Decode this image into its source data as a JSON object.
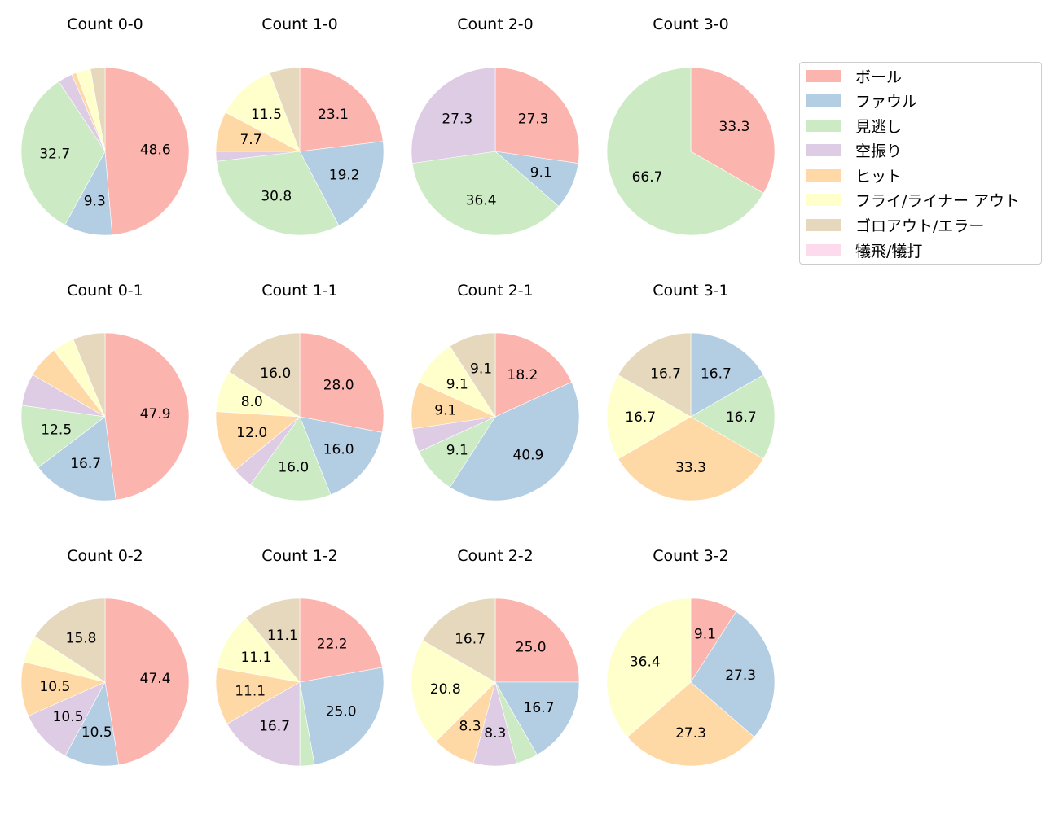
{
  "chart_data": {
    "type": "pie",
    "layout": {
      "rows": 3,
      "cols": 4,
      "legend_position": "upper right outside"
    },
    "categories": [
      "ボール",
      "ファウル",
      "見逃し",
      "空振り",
      "ヒット",
      "フライ/ライナー アウト",
      "ゴロアウト/エラー",
      "犠飛/犠打"
    ],
    "colors": [
      "#fbb4ae",
      "#b3cde3",
      "#ccebc5",
      "#decbe4",
      "#fed9a6",
      "#ffffcc",
      "#e5d8bd",
      "#fddaec"
    ],
    "start_angle": 90,
    "direction": "clockwise",
    "label_threshold": 7,
    "panels": [
      {
        "title": "Count 0-0",
        "values": [
          48.6,
          9.3,
          32.7,
          2.8,
          0.9,
          2.8,
          2.8,
          0
        ]
      },
      {
        "title": "Count 1-0",
        "values": [
          23.1,
          19.2,
          30.8,
          1.9,
          7.7,
          11.5,
          5.8,
          0
        ]
      },
      {
        "title": "Count 2-0",
        "values": [
          27.3,
          9.1,
          36.4,
          27.3,
          0,
          0,
          0,
          0
        ]
      },
      {
        "title": "Count 3-0",
        "values": [
          33.3,
          0,
          66.7,
          0,
          0,
          0,
          0,
          0
        ]
      },
      {
        "title": "Count 0-1",
        "values": [
          47.9,
          16.7,
          12.5,
          6.2,
          6.2,
          4.2,
          6.2,
          0
        ]
      },
      {
        "title": "Count 1-1",
        "values": [
          28.0,
          16.0,
          16.0,
          4.0,
          12.0,
          8.0,
          16.0,
          0
        ]
      },
      {
        "title": "Count 2-1",
        "values": [
          18.2,
          40.9,
          9.1,
          4.5,
          9.1,
          9.1,
          9.1,
          0
        ]
      },
      {
        "title": "Count 3-1",
        "values": [
          0,
          16.7,
          16.7,
          0,
          33.3,
          16.7,
          16.7,
          0
        ]
      },
      {
        "title": "Count 0-2",
        "values": [
          47.4,
          10.5,
          0,
          10.5,
          10.5,
          5.3,
          15.8,
          0
        ]
      },
      {
        "title": "Count 1-2",
        "values": [
          22.2,
          25.0,
          2.8,
          16.7,
          11.1,
          11.1,
          11.1,
          0
        ]
      },
      {
        "title": "Count 2-2",
        "values": [
          25.0,
          16.7,
          4.2,
          8.3,
          8.3,
          20.8,
          16.7,
          0
        ]
      },
      {
        "title": "Count 3-2",
        "values": [
          9.1,
          27.3,
          0,
          0,
          27.3,
          36.4,
          0,
          0
        ]
      }
    ]
  },
  "legend": {
    "items": [
      {
        "label": "ボール",
        "color": "#fbb4ae"
      },
      {
        "label": "ファウル",
        "color": "#b3cde3"
      },
      {
        "label": "見逃し",
        "color": "#ccebc5"
      },
      {
        "label": "空振り",
        "color": "#decbe4"
      },
      {
        "label": "ヒット",
        "color": "#fed9a6"
      },
      {
        "label": "フライ/ライナー アウト",
        "color": "#ffffcc"
      },
      {
        "label": "ゴロアウト/エラー",
        "color": "#e5d8bd"
      },
      {
        "label": "犠飛/犠打",
        "color": "#fddaec"
      }
    ]
  }
}
